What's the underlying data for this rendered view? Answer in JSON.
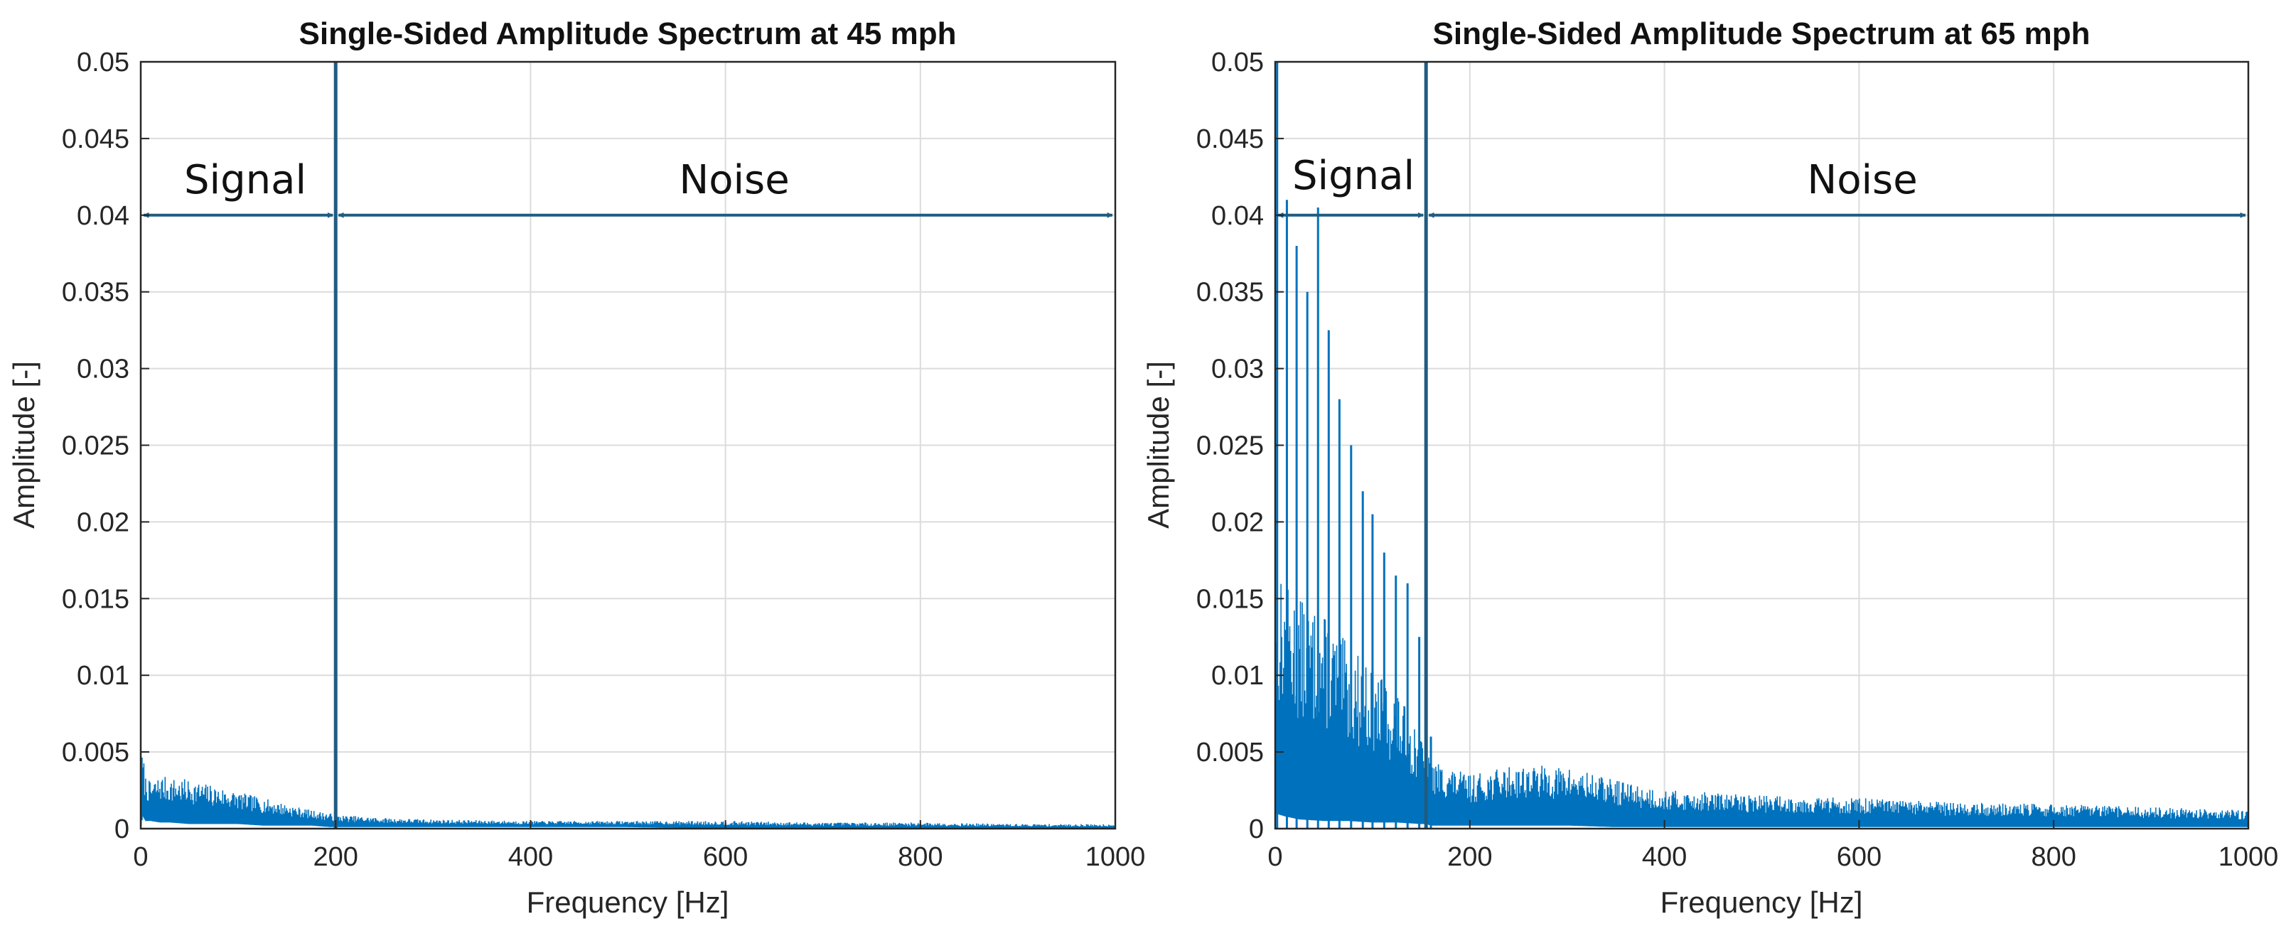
{
  "colors": {
    "series": "#0072BD",
    "annotation": "#1F5C80",
    "grid": "#dcdcdc",
    "axis": "#262626"
  },
  "chart_data": [
    {
      "type": "line",
      "title": "Single-Sided Amplitude Spectrum at 45 mph",
      "xlabel": "Frequency [Hz]",
      "ylabel": "Amplitude [-]",
      "xlim": [
        0,
        1000
      ],
      "ylim": [
        0,
        0.05
      ],
      "xticks": [
        0,
        200,
        400,
        600,
        800,
        1000
      ],
      "xtick_labels": [
        "0",
        "200",
        "400",
        "600",
        "800",
        "1000"
      ],
      "yticks": [
        0,
        0.005,
        0.01,
        0.015,
        0.02,
        0.025,
        0.03,
        0.035,
        0.04,
        0.045,
        0.05
      ],
      "ytick_labels": [
        "0",
        "0.005",
        "0.01",
        "0.015",
        "0.02",
        "0.025",
        "0.03",
        "0.035",
        "0.04",
        "0.045",
        "0.05"
      ],
      "grid": true,
      "divider_frequency": 200,
      "annotations": [
        {
          "label": "Signal",
          "x_start": 0,
          "x_end": 200,
          "arrow_y": 0.04
        },
        {
          "label": "Noise",
          "x_start": 200,
          "x_end": 1000,
          "arrow_y": 0.04
        }
      ],
      "series": [
        {
          "name": "Amplitude",
          "x": [
            0,
            2,
            5,
            10,
            20,
            30,
            50,
            75,
            100,
            125,
            150,
            175,
            195,
            200,
            250,
            300,
            400,
            500,
            600,
            700,
            800,
            900,
            1000
          ],
          "max": [
            0.0045,
            0.005,
            0.0035,
            0.003,
            0.0035,
            0.0033,
            0.0032,
            0.0028,
            0.0024,
            0.002,
            0.0016,
            0.0012,
            0.001,
            0.0009,
            0.0007,
            0.0006,
            0.0005,
            0.0005,
            0.0005,
            0.0004,
            0.0004,
            0.0003,
            0.0003
          ],
          "min": [
            0,
            0.0008,
            0.0005,
            0.0005,
            0.0004,
            0.0004,
            0.0003,
            0.0003,
            0.0003,
            0.0002,
            0.0002,
            0.0002,
            0.0001,
            0.0001,
            0.0001,
            0.0001,
            0.0001,
            0.0001,
            0.0,
            0.0,
            0.0,
            0.0,
            0.0
          ]
        }
      ]
    },
    {
      "type": "line",
      "title": "Single-Sided Amplitude Spectrum at 65 mph",
      "xlabel": "Frequency [Hz]",
      "ylabel": "Amplitude [-]",
      "xlim": [
        0,
        1000
      ],
      "ylim": [
        0,
        0.05
      ],
      "xticks": [
        0,
        200,
        400,
        600,
        800,
        1000
      ],
      "xtick_labels": [
        "0",
        "200",
        "400",
        "600",
        "800",
        "1000"
      ],
      "yticks": [
        0,
        0.005,
        0.01,
        0.015,
        0.02,
        0.025,
        0.03,
        0.035,
        0.04,
        0.045,
        0.05
      ],
      "ytick_labels": [
        "0",
        "0.005",
        "0.01",
        "0.015",
        "0.02",
        "0.025",
        "0.03",
        "0.035",
        "0.04",
        "0.045",
        "0.05"
      ],
      "grid": true,
      "divider_frequency": 155,
      "annotations": [
        {
          "label": "Signal",
          "x_start": 0,
          "x_end": 155,
          "arrow_y": 0.04
        },
        {
          "label": "Noise",
          "x_start": 155,
          "x_end": 1000,
          "arrow_y": 0.04
        }
      ],
      "peaks": [
        {
          "x": 2,
          "y": 0.05
        },
        {
          "x": 12,
          "y": 0.041
        },
        {
          "x": 22,
          "y": 0.038
        },
        {
          "x": 33,
          "y": 0.035
        },
        {
          "x": 44,
          "y": 0.0405
        },
        {
          "x": 55,
          "y": 0.0325
        },
        {
          "x": 66,
          "y": 0.028
        },
        {
          "x": 78,
          "y": 0.025
        },
        {
          "x": 90,
          "y": 0.022
        },
        {
          "x": 100,
          "y": 0.0205
        },
        {
          "x": 112,
          "y": 0.018
        },
        {
          "x": 124,
          "y": 0.0165
        },
        {
          "x": 136,
          "y": 0.016
        },
        {
          "x": 148,
          "y": 0.0125
        },
        {
          "x": 160,
          "y": 0.006
        }
      ],
      "series": [
        {
          "name": "Amplitude",
          "x": [
            0,
            10,
            25,
            50,
            75,
            100,
            125,
            150,
            155,
            160,
            200,
            250,
            300,
            350,
            400,
            500,
            600,
            700,
            800,
            900,
            1000
          ],
          "max": [
            0.017,
            0.016,
            0.015,
            0.014,
            0.012,
            0.0105,
            0.009,
            0.006,
            0.005,
            0.0045,
            0.0035,
            0.0042,
            0.004,
            0.0032,
            0.0025,
            0.0022,
            0.002,
            0.0017,
            0.0016,
            0.0014,
            0.0012
          ],
          "min": [
            0.001,
            0.0008,
            0.0006,
            0.0005,
            0.0005,
            0.0004,
            0.0004,
            0.0003,
            0.0003,
            0.0002,
            0.0002,
            0.0002,
            0.0002,
            0.0001,
            0.0001,
            0.0001,
            0.0001,
            0.0001,
            0.0001,
            0.0001,
            0.0001
          ]
        }
      ]
    }
  ]
}
